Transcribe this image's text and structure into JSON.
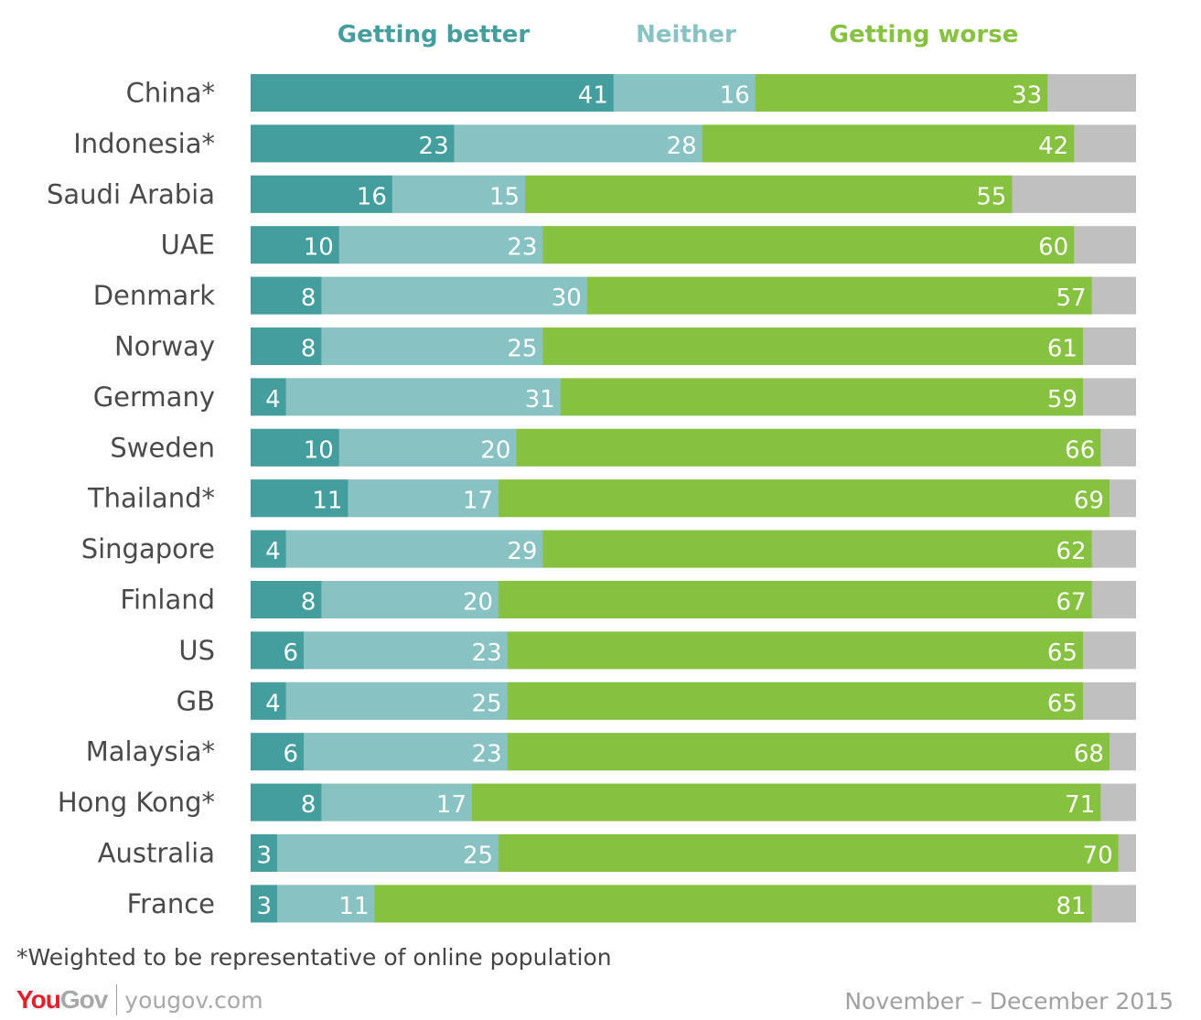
{
  "chart_data": {
    "type": "bar",
    "orientation": "horizontal",
    "stacked": true,
    "title": "",
    "xlabel": "",
    "ylabel": "",
    "xlim": [
      0,
      100
    ],
    "grid": false,
    "legend_position": "top",
    "categories": [
      "China*",
      "Indonesia*",
      "Saudi Arabia",
      "UAE",
      "Denmark",
      "Norway",
      "Germany",
      "Sweden",
      "Thailand*",
      "Singapore",
      "Finland",
      "US",
      "GB",
      "Malaysia*",
      "Hong Kong*",
      "Australia",
      "France"
    ],
    "series": [
      {
        "name": "Getting better",
        "color": "#459e9e",
        "values": [
          41,
          23,
          16,
          10,
          8,
          8,
          4,
          10,
          11,
          4,
          8,
          6,
          4,
          6,
          8,
          3,
          3
        ]
      },
      {
        "name": "Neither",
        "color": "#88c2c3",
        "values": [
          16,
          28,
          15,
          23,
          30,
          25,
          31,
          20,
          17,
          29,
          20,
          23,
          25,
          23,
          17,
          25,
          11
        ]
      },
      {
        "name": "Getting worse",
        "color": "#86c23f",
        "values": [
          33,
          42,
          55,
          60,
          57,
          61,
          59,
          66,
          69,
          62,
          67,
          65,
          65,
          68,
          71,
          70,
          81
        ]
      }
    ],
    "remainder_color": "#c0c0c0"
  },
  "footnote": "*Weighted to be representative of online population",
  "brand": {
    "logo_part1": "You",
    "logo_part2": "Gov",
    "url": "yougov.com"
  },
  "date": "November – December 2015"
}
